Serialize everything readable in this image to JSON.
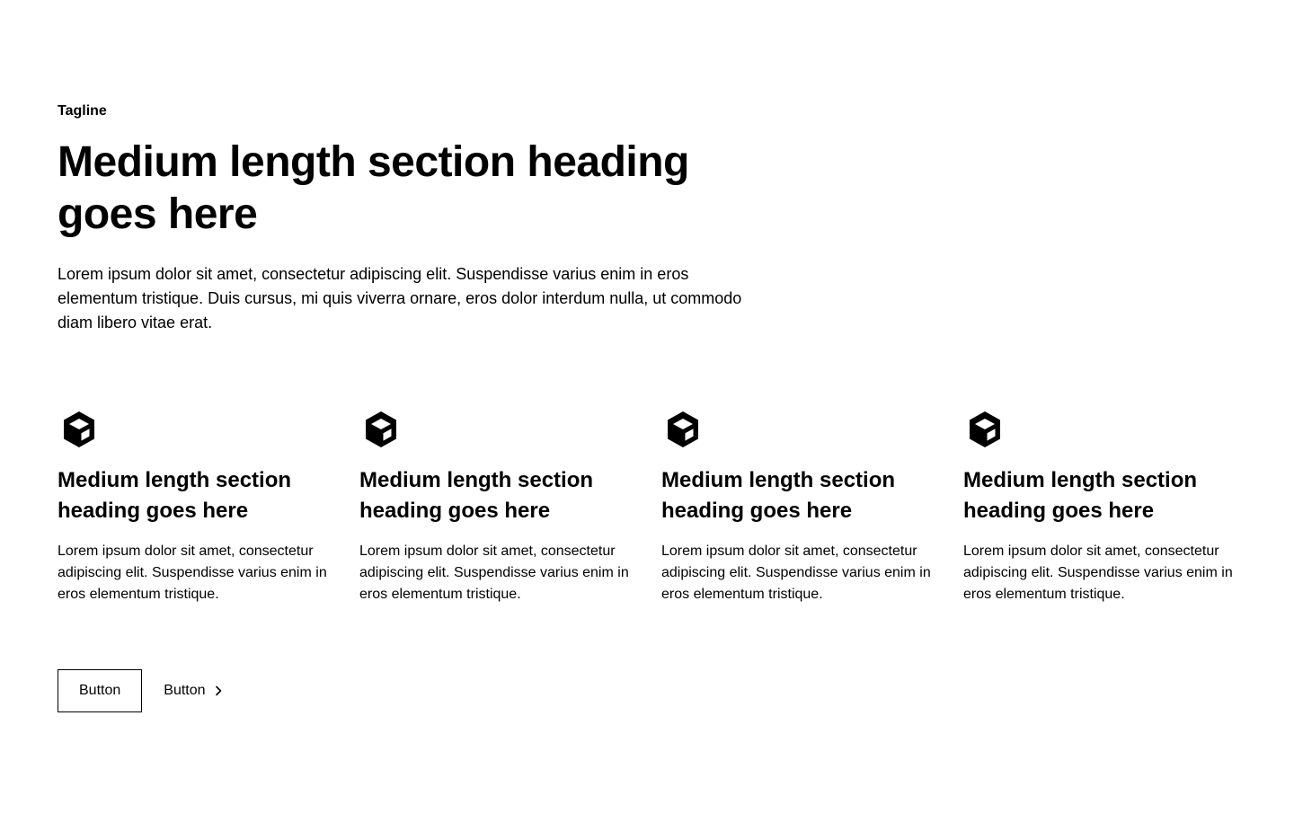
{
  "header": {
    "tagline": "Tagline",
    "heading": "Medium length section heading goes here",
    "intro": "Lorem ipsum dolor sit amet, consectetur adipiscing elit. Suspendisse varius enim in eros elementum tristique. Duis cursus, mi quis viverra ornare, eros dolor interdum nulla, ut commodo diam libero vitae erat."
  },
  "features": [
    {
      "icon": "cube-icon",
      "title": "Medium length section heading goes here",
      "text": "Lorem ipsum dolor sit amet, consectetur adipiscing elit. Suspendisse varius enim in eros elementum tristique."
    },
    {
      "icon": "cube-icon",
      "title": "Medium length section heading goes here",
      "text": "Lorem ipsum dolor sit amet, consectetur adipiscing elit. Suspendisse varius enim in eros elementum tristique."
    },
    {
      "icon": "cube-icon",
      "title": "Medium length section heading goes here",
      "text": "Lorem ipsum dolor sit amet, consectetur adipiscing elit. Suspendisse varius enim in eros elementum tristique."
    },
    {
      "icon": "cube-icon",
      "title": "Medium length section heading goes here",
      "text": "Lorem ipsum dolor sit amet, consectetur adipiscing elit. Suspendisse varius enim in eros elementum tristique."
    }
  ],
  "actions": {
    "primary_label": "Button",
    "secondary_label": "Button",
    "secondary_icon": "chevron-right-icon"
  },
  "colors": {
    "text": "#000000",
    "background": "#ffffff",
    "border": "#000000"
  }
}
